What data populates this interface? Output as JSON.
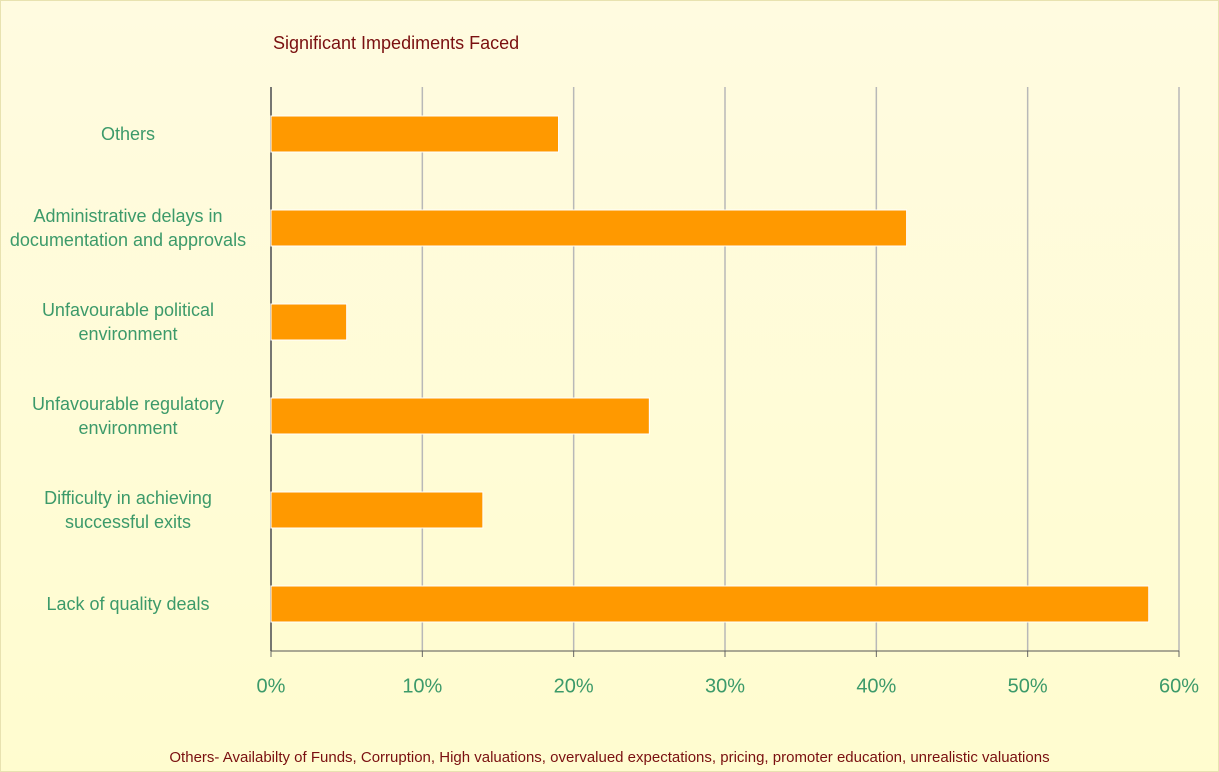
{
  "chart_data": {
    "type": "bar",
    "orientation": "horizontal",
    "title": "Significant Impediments Faced",
    "categories": [
      "Others",
      "Administrative delays in documentation and approvals",
      "Unfavourable political environment",
      "Unfavourable regulatory environment",
      "Difficulty in achieving successful exits",
      "Lack of quality deals"
    ],
    "values": [
      19,
      42,
      5,
      25,
      14,
      58
    ],
    "color": "#ff9900",
    "xlim": [
      0,
      60
    ],
    "xticks": [
      {
        "value": 0,
        "label": "0%"
      },
      {
        "value": 10,
        "label": "10%"
      },
      {
        "value": 20,
        "label": "20%"
      },
      {
        "value": 30,
        "label": "30%"
      },
      {
        "value": 40,
        "label": "40%"
      },
      {
        "value": 50,
        "label": "50%"
      },
      {
        "value": 60,
        "label": "60%"
      }
    ],
    "grid": true,
    "note": "Others- Availabilty of Funds, Corruption, High valuations, overvalued expectations, pricing, promoter education, unrealistic valuations"
  }
}
